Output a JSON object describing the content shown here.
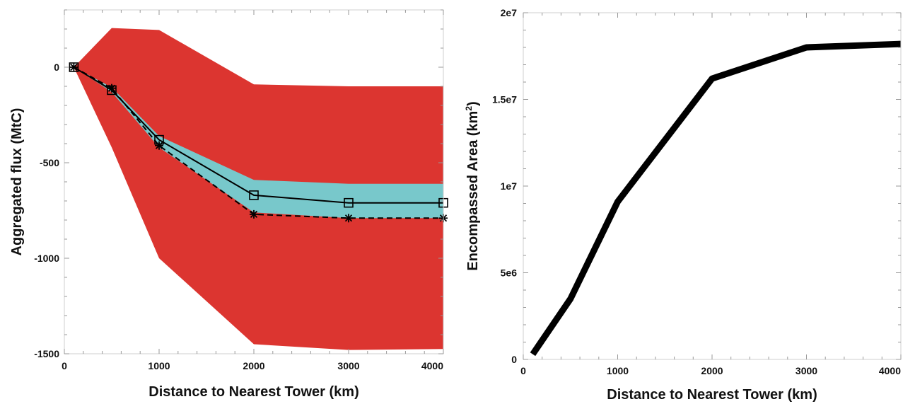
{
  "chart_data": [
    {
      "type": "area",
      "xlabel": "Distance to Nearest Tower (km)",
      "ylabel": "Aggregated flux (MtC)",
      "xlim": [
        0,
        4000
      ],
      "ylim": [
        -1500,
        300
      ],
      "xticks": [
        "0",
        "1000",
        "2000",
        "3000",
        "4000"
      ],
      "yticks": [
        "0",
        "-500",
        "-1000",
        "-1500"
      ],
      "colors": {
        "outer_band": "#dc3530",
        "inner_band": "#78c8cb",
        "line": "#000000"
      },
      "outer_band": {
        "x": [
          100,
          500,
          1000,
          2000,
          3000,
          4000
        ],
        "upper": [
          0,
          205,
          195,
          -90,
          -100,
          -100
        ],
        "lower": [
          0,
          -420,
          -1000,
          -1450,
          -1480,
          -1475
        ]
      },
      "inner_band": {
        "x": [
          100,
          500,
          1000,
          2000,
          3000,
          4000
        ],
        "upper": [
          0,
          -105,
          -360,
          -590,
          -610,
          -610
        ],
        "lower": [
          0,
          -130,
          -420,
          -760,
          -790,
          -790
        ]
      },
      "series": [
        {
          "style": "solid",
          "marker": "square",
          "x": [
            100,
            500,
            1000,
            2000,
            3000,
            4000
          ],
          "values": [
            0,
            -120,
            -380,
            -670,
            -710,
            -710
          ]
        },
        {
          "style": "dashed",
          "marker": "asterisk",
          "x": [
            100,
            500,
            1000,
            2000,
            3000,
            4000
          ],
          "values": [
            0,
            -110,
            -410,
            -770,
            -790,
            -790
          ]
        }
      ]
    },
    {
      "type": "line",
      "xlabel": "Distance to Nearest Tower (km)",
      "ylabel": "Encompassed Area (km",
      "ylabel_sup": "2",
      "ylabel_suffix": ")",
      "xlim": [
        0,
        4000
      ],
      "ylim": [
        0,
        20000000
      ],
      "xticks": [
        "0",
        "1000",
        "2000",
        "3000",
        "4000"
      ],
      "yticks": [
        "0",
        "5e6",
        "1e7",
        "1.5e7",
        "2e7"
      ],
      "colors": {
        "line": "#000000"
      },
      "series": [
        {
          "x": [
            100,
            500,
            1000,
            2000,
            3000,
            4000
          ],
          "values": [
            300000,
            3500000,
            9100000,
            16200000,
            18000000,
            18200000
          ]
        }
      ]
    }
  ]
}
